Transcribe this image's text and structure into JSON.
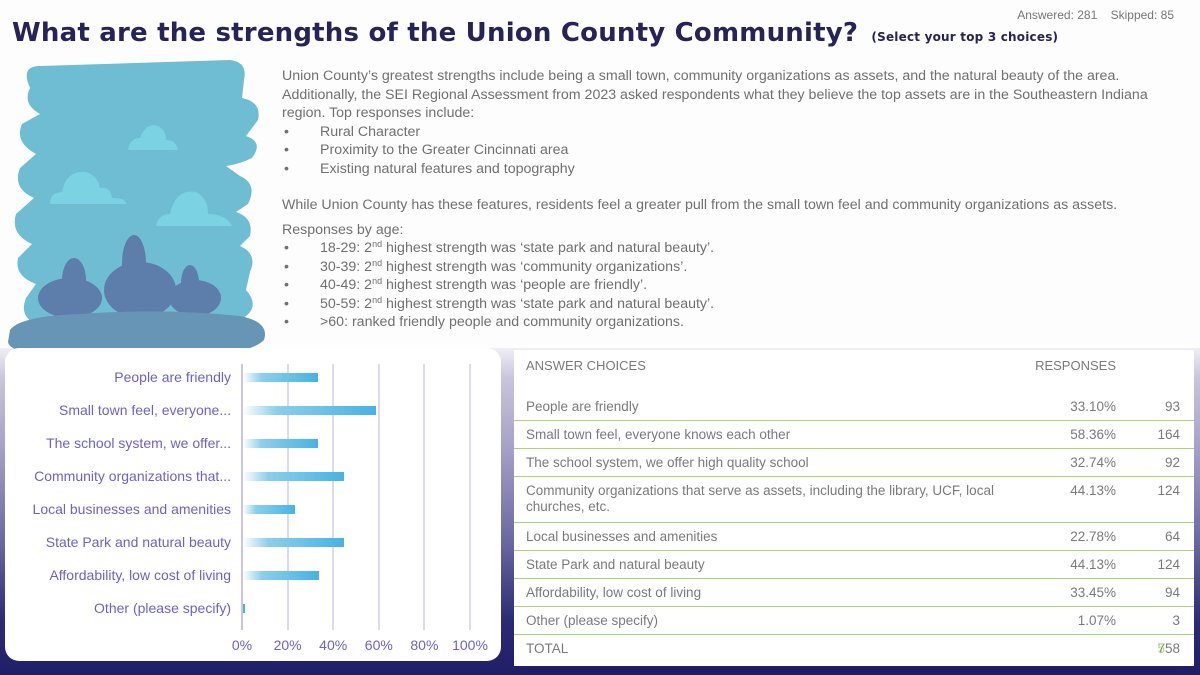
{
  "header": {
    "title": "What are the strengths of the Union County Community?",
    "subtitle": "(Select your top 3 choices)",
    "answered": "Answered: 281",
    "skipped": "Skipped: 85"
  },
  "summary": {
    "para1": "Union County’s greatest strengths include being a small town, community organizations as assets, and the natural beauty of the area. Additionally, the SEI Regional Assessment from 2023 asked respondents what they believe the top assets are in the Southeastern Indiana region. Top responses include:",
    "top_assets": [
      "Rural Character",
      "Proximity to the Greater Cincinnati area",
      "Existing natural features and topography"
    ],
    "para2": "While Union County has these features, residents feel a greater pull from the small town feel and community organizations as assets.",
    "age_heading": "Responses by age:",
    "age_items": [
      {
        "prefix": "18-29: 2",
        "sup": "nd",
        "rest": " highest strength was ‘state park and natural beauty’."
      },
      {
        "prefix": "30-39: 2",
        "sup": "nd",
        "rest": " highest strength was ‘community organizations’."
      },
      {
        "prefix": "40-49: 2",
        "sup": "nd",
        "rest": " highest strength was ‘people are friendly’."
      },
      {
        "prefix": "50-59: 2",
        "sup": "nd",
        "rest": " highest strength was ‘state park and natural beauty’."
      },
      {
        "prefix": ">60: ranked friendly people and community organizations.",
        "sup": "",
        "rest": ""
      }
    ]
  },
  "illustration": {
    "icon": "landscape-illustration-icon",
    "colors": {
      "sky": "#6fbdd2",
      "cloud": "#7bd2e2",
      "bush": "#5d7aa8",
      "ground": "#6795b5"
    }
  },
  "chart_data": {
    "type": "bar",
    "orientation": "horizontal",
    "categories": [
      "People are friendly",
      "Small town feel, everyone...",
      "The school system, we offer...",
      "Community organizations that...",
      "Local businesses and amenities",
      "State Park and natural beauty",
      "Affordability, low cost of living",
      "Other (please specify)"
    ],
    "values": [
      33.1,
      58.36,
      32.74,
      44.13,
      22.78,
      44.13,
      33.45,
      1.07
    ],
    "xlim": [
      0,
      100
    ],
    "xticks": [
      "0%",
      "20%",
      "40%",
      "60%",
      "80%",
      "100%"
    ],
    "xtick_values": [
      0,
      20,
      40,
      60,
      80,
      100
    ],
    "grid": true,
    "title": "",
    "xlabel": "",
    "ylabel": "",
    "colors": {
      "bar": "#47b2e3",
      "label": "#6a63c9",
      "grid": "#dcd9f0"
    }
  },
  "table": {
    "headers": {
      "choice": "ANSWER CHOICES",
      "responses": "RESPONSES"
    },
    "rows": [
      {
        "choice": "People are friendly",
        "percent": "33.10%",
        "count": "93"
      },
      {
        "choice": "Small town feel, everyone knows each other",
        "percent": "58.36%",
        "count": "164"
      },
      {
        "choice": "The school system, we offer high quality school",
        "percent": "32.74%",
        "count": "92"
      },
      {
        "choice": "Community organizations that serve as assets, including the library, UCF, local churches, etc.",
        "percent": "44.13%",
        "count": "124"
      },
      {
        "choice": "Local businesses and amenities",
        "percent": "22.78%",
        "count": "64"
      },
      {
        "choice": "State Park and natural beauty",
        "percent": "44.13%",
        "count": "124"
      },
      {
        "choice": "Affordability, low cost of living",
        "percent": "33.45%",
        "count": "94"
      },
      {
        "choice": "Other (please specify)",
        "percent": "1.07%",
        "count": "3"
      }
    ],
    "total_label": "TOTAL",
    "total_value": "758",
    "total_overlay": "5",
    "divider_color": "#a8d670"
  }
}
